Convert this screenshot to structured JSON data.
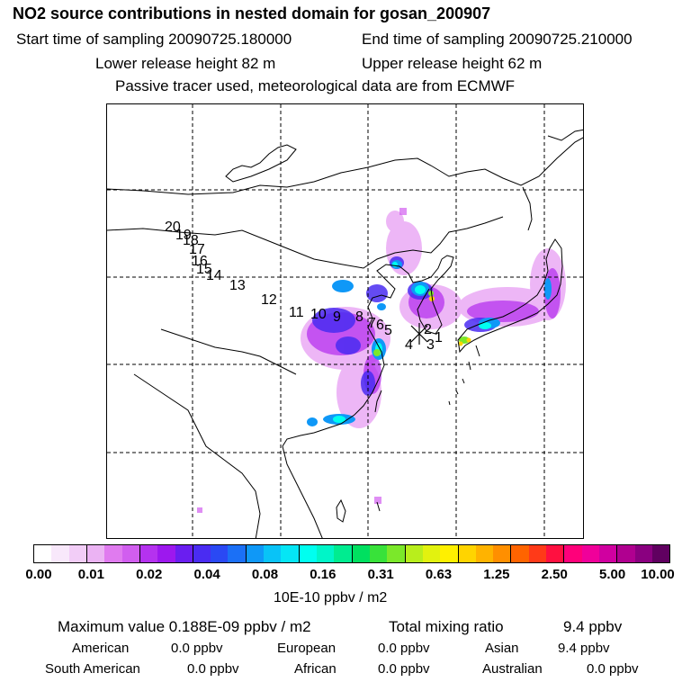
{
  "header": {
    "title": "NO2 source contributions in nested domain for gosan_200907",
    "start_label": "Start time of sampling 20090725.180000",
    "end_label": "End time of sampling 20090725.210000",
    "lower_label": "Lower release height   82 m",
    "upper_label": "Upper release height   62 m",
    "note": "Passive tracer used, meteorological data are from ECMWF"
  },
  "map": {
    "trajectory_labels": [
      "1",
      "2",
      "3",
      "4",
      "5",
      "6",
      "7",
      "8",
      "9",
      "10",
      "11",
      "12",
      "13",
      "14",
      "15",
      "16",
      "17",
      "18",
      "19",
      "20"
    ],
    "receptor_marker": "×"
  },
  "colorbar": {
    "colors": [
      "#ffffff",
      "#f8e8fb",
      "#f2cdf7",
      "#ebb3f3",
      "#e07bef",
      "#d15eef",
      "#b532ef",
      "#9d18ee",
      "#6a1ef0",
      "#4a2cf2",
      "#2a49f4",
      "#1b70f6",
      "#0f98f7",
      "#09c3f7",
      "#05e6f5",
      "#00fff0",
      "#00f5c8",
      "#00ec90",
      "#00e060",
      "#38e23a",
      "#7be82a",
      "#b8ee1c",
      "#e2f20f",
      "#fff000",
      "#ffd400",
      "#ffb300",
      "#ff8f00",
      "#ff6400",
      "#ff3a18",
      "#ff1040",
      "#ff007a",
      "#f0009a",
      "#d000a0",
      "#b00090",
      "#8a0080",
      "#600060"
    ],
    "ticks": [
      "0.00",
      "0.01",
      "0.02",
      "0.04",
      "0.08",
      "0.16",
      "0.31",
      "0.63",
      "1.25",
      "2.50",
      "5.00",
      "10.00"
    ],
    "unit": "10E-10 ppbv / m2"
  },
  "summary": {
    "max_value": "Maximum value  0.188E-09 ppbv / m2",
    "total_label": "Total mixing ratio",
    "total_value": "9.4 ppbv",
    "regions": [
      {
        "name": "American",
        "value": "0.0 ppbv"
      },
      {
        "name": "European",
        "value": "0.0 ppbv"
      },
      {
        "name": "Asian",
        "value": "9.4 ppbv"
      },
      {
        "name": "South American",
        "value": "0.0 ppbv"
      },
      {
        "name": "African",
        "value": "0.0 ppbv"
      },
      {
        "name": "Australian",
        "value": "0.0 ppbv"
      }
    ]
  }
}
